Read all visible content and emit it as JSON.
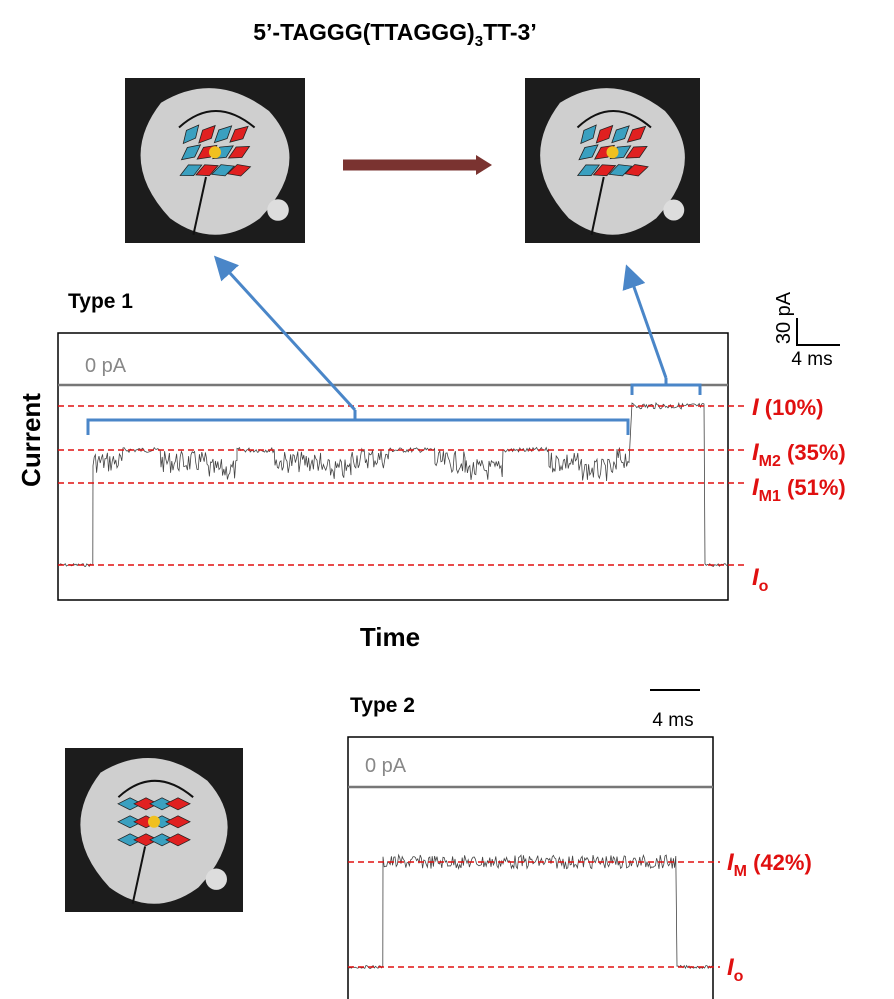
{
  "title": {
    "main": "5’-TAGGG(TTAGGG)",
    "sub": "3",
    "end": "TT-3’"
  },
  "type1": {
    "label": "Type 1",
    "scale_y": "30 pA",
    "scale_x": "4 ms",
    "zero": "0 pA",
    "y_axis": "Current",
    "x_axis": "Time",
    "levels": [
      {
        "symbol": "I",
        "sub": "",
        "text": " (10%)"
      },
      {
        "symbol": "I",
        "sub": "M2",
        "text": " (35%)"
      },
      {
        "symbol": "I",
        "sub": "M1",
        "text": " (51%)"
      },
      {
        "symbol": "I",
        "sub": "o",
        "text": ""
      }
    ]
  },
  "type2": {
    "label": "Type 2",
    "scale_x": "4 ms",
    "zero": "0 pA",
    "levels": [
      {
        "symbol": "I",
        "sub": "M",
        "text": " (42%)"
      },
      {
        "symbol": "I",
        "sub": "o",
        "text": ""
      }
    ]
  }
}
